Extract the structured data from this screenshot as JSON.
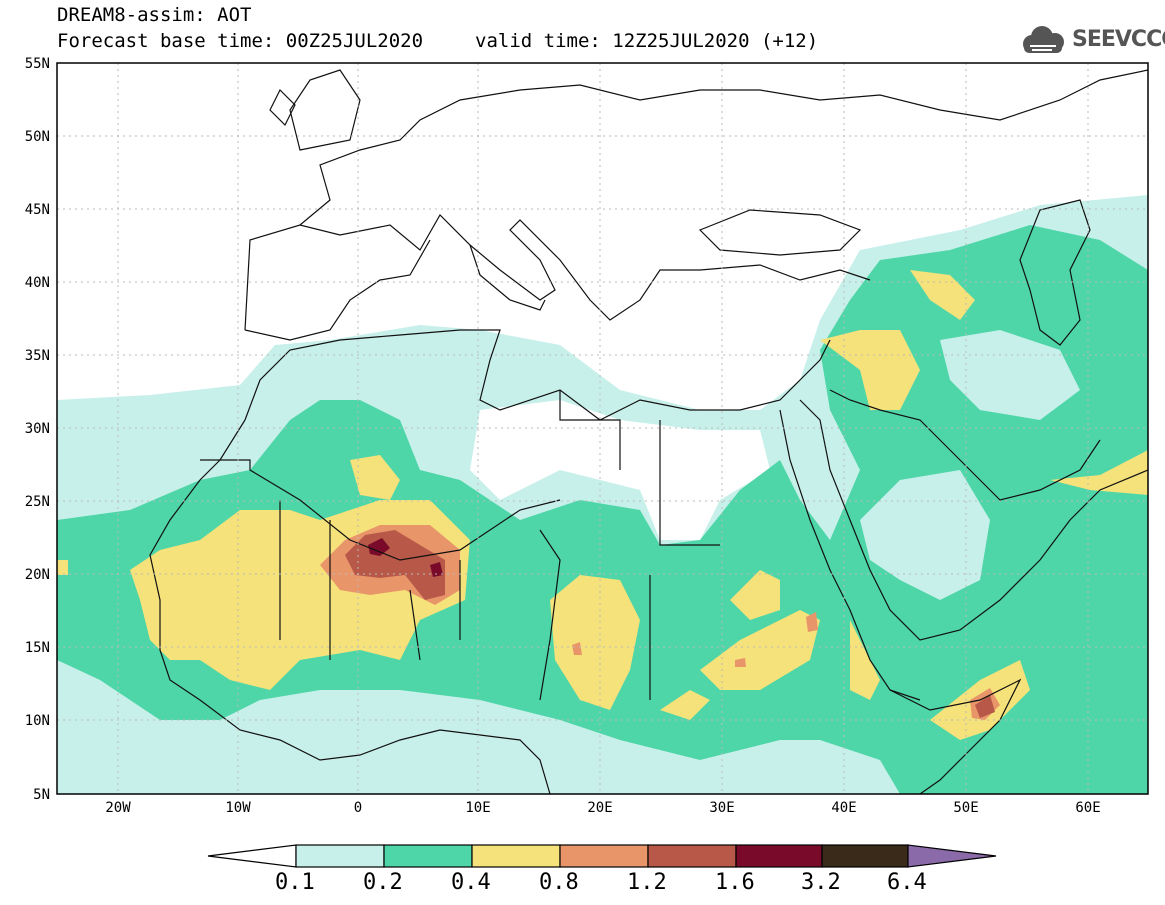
{
  "title": {
    "line1": "DREAM8-assim: AOT",
    "line2_base": "Forecast base time: 00Z25JUL2020",
    "line2_valid": "valid time: 12Z25JUL2020 (+12)"
  },
  "logo": {
    "text": "SEEVCCC",
    "icon": "cloud-icon"
  },
  "axes": {
    "lat_labels": [
      "55N",
      "50N",
      "45N",
      "40N",
      "35N",
      "30N",
      "25N",
      "20N",
      "15N",
      "10N",
      "5N"
    ],
    "lon_labels": [
      "20W",
      "10W",
      "0",
      "10E",
      "20E",
      "30E",
      "40E",
      "50E",
      "60E"
    ]
  },
  "colorbar": {
    "labels": [
      "0.1",
      "0.2",
      "0.4",
      "0.8",
      "1.2",
      "1.6",
      "3.2",
      "6.4"
    ],
    "colors": [
      "#ffffff",
      "#c8f0ea",
      "#4fd6a8",
      "#f5e27a",
      "#e9956a",
      "#b85848",
      "#7a0a2a",
      "#3a2a1a",
      "#8a6aa8"
    ]
  },
  "map_colors": {
    "level_0.1": "#c8f0ea",
    "level_0.2": "#4fd6a8",
    "level_0.4": "#f5e27a",
    "level_0.8": "#e9956a",
    "level_1.2": "#b85848",
    "level_1.6": "#7a0a2a"
  }
}
